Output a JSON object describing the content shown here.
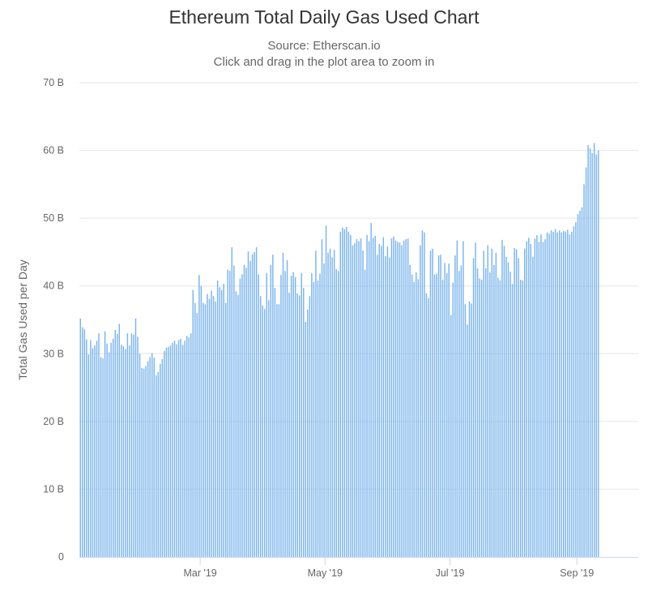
{
  "header": {
    "title": "Ethereum Total Daily Gas Used Chart",
    "subtitle": "Source: Etherscan.io",
    "hint": "Click and drag in the plot area to zoom in"
  },
  "colors": {
    "bar": "#7cb5ec",
    "grid": "#e6e6e6",
    "axis": "#ccd6eb"
  },
  "chart_data": {
    "type": "bar",
    "title": "Ethereum Total Daily Gas Used Chart",
    "subtitle": "Source: Etherscan.io",
    "xlabel": "",
    "ylabel": "Total Gas Used per Day",
    "ylim": [
      0,
      70
    ],
    "y_unit": "B",
    "y_ticks": [
      {
        "value": 0,
        "label": "0"
      },
      {
        "value": 10,
        "label": "10 B"
      },
      {
        "value": 20,
        "label": "20 B"
      },
      {
        "value": 30,
        "label": "30 B"
      },
      {
        "value": 40,
        "label": "40 B"
      },
      {
        "value": 50,
        "label": "50 B"
      },
      {
        "value": 60,
        "label": "60 B"
      },
      {
        "value": 70,
        "label": "70 B"
      }
    ],
    "x_range": [
      "2019-01-01",
      "2019-09-30"
    ],
    "x_ticks": [
      {
        "date": "2019-03-01",
        "label": "Mar '19"
      },
      {
        "date": "2019-05-01",
        "label": "May '19"
      },
      {
        "date": "2019-07-01",
        "label": "Jul '19"
      },
      {
        "date": "2019-09-01",
        "label": "Sep '19"
      }
    ],
    "grid": true,
    "legend": "none",
    "series": [
      {
        "values": [
          35.2,
          33.9,
          33.6,
          32.1,
          29.9,
          32.0,
          30.8,
          31.2,
          31.9,
          33.0,
          29.5,
          29.3,
          33.3,
          31.5,
          30.2,
          31.6,
          32.2,
          33.5,
          32.9,
          34.4,
          31.3,
          31.1,
          30.7,
          33.0,
          31.2,
          33.0,
          32.8,
          35.2,
          32.5,
          30.0,
          27.9,
          27.8,
          28.2,
          28.9,
          29.5,
          30.1,
          29.4,
          26.8,
          27.3,
          28.5,
          29.2,
          30.4,
          30.9,
          31.0,
          31.2,
          31.6,
          31.9,
          31.4,
          32.0,
          32.2,
          31.3,
          31.9,
          32.6,
          32.4,
          33.0,
          39.4,
          37.5,
          36.0,
          41.6,
          40.0,
          37.5,
          37.3,
          38.8,
          38.1,
          39.3,
          38.5,
          37.7,
          40.8,
          39.8,
          39.4,
          40.3,
          37.5,
          42.4,
          42.2,
          45.7,
          43.0,
          39.2,
          38.7,
          41.1,
          41.7,
          43.1,
          42.7,
          45.1,
          43.7,
          44.7,
          45.0,
          45.7,
          41.7,
          38.5,
          37.1,
          36.6,
          41.9,
          37.9,
          43.1,
          44.6,
          39.7,
          37.3,
          37.3,
          41.6,
          44.9,
          42.2,
          43.8,
          39.0,
          41.5,
          42.0,
          41.3,
          38.9,
          38.6,
          41.9,
          39.7,
          34.7,
          36.5,
          38.5,
          41.9,
          40.6,
          45.2,
          40.8,
          41.8,
          46.9,
          43.3,
          48.9,
          44.9,
          45.5,
          44.2,
          45.3,
          42.5,
          42.2,
          48.0,
          48.6,
          48.4,
          48.7,
          48.0,
          47.5,
          46.0,
          46.3,
          46.9,
          46.6,
          47.0,
          45.2,
          42.4,
          47.5,
          46.6,
          49.3,
          47.1,
          47.4,
          44.6,
          46.2,
          45.9,
          47.2,
          44.4,
          45.8,
          44.2,
          47.0,
          47.3,
          46.7,
          46.5,
          46.4,
          46.0,
          46.7,
          46.9,
          47.0,
          43.1,
          41.7,
          40.6,
          42.0,
          41.0,
          46.0,
          48.2,
          47.9,
          38.9,
          38.2,
          45.2,
          45.5,
          41.7,
          41.8,
          44.5,
          44.6,
          40.9,
          43.4,
          41.9,
          43.3,
          35.7,
          40.5,
          44.5,
          46.7,
          42.2,
          43.0,
          46.6,
          37.3,
          34.3,
          37.7,
          37.4,
          44.1,
          46.4,
          42.6,
          41.1,
          40.9,
          45.2,
          42.6,
          46.0,
          42.0,
          45.5,
          43.1,
          44.9,
          41.2,
          40.8,
          46.8,
          45.9,
          44.3,
          43.5,
          42.1,
          40.3,
          45.6,
          45.4,
          44.1,
          40.9,
          40.8,
          45.5,
          46.6,
          47.1,
          46.2,
          44.3,
          47.0,
          47.5,
          46.5,
          47.6,
          46.5,
          46.9,
          47.9,
          47.7,
          48.2,
          48.0,
          48.4,
          47.9,
          48.2,
          47.9,
          48.1,
          48.0,
          48.3,
          47.6,
          48.0,
          48.8,
          49.4,
          50.6,
          51.1,
          51.6,
          55.0,
          57.5,
          60.8,
          60.3,
          59.6,
          61.1,
          59.4,
          60.0
        ]
      }
    ]
  }
}
